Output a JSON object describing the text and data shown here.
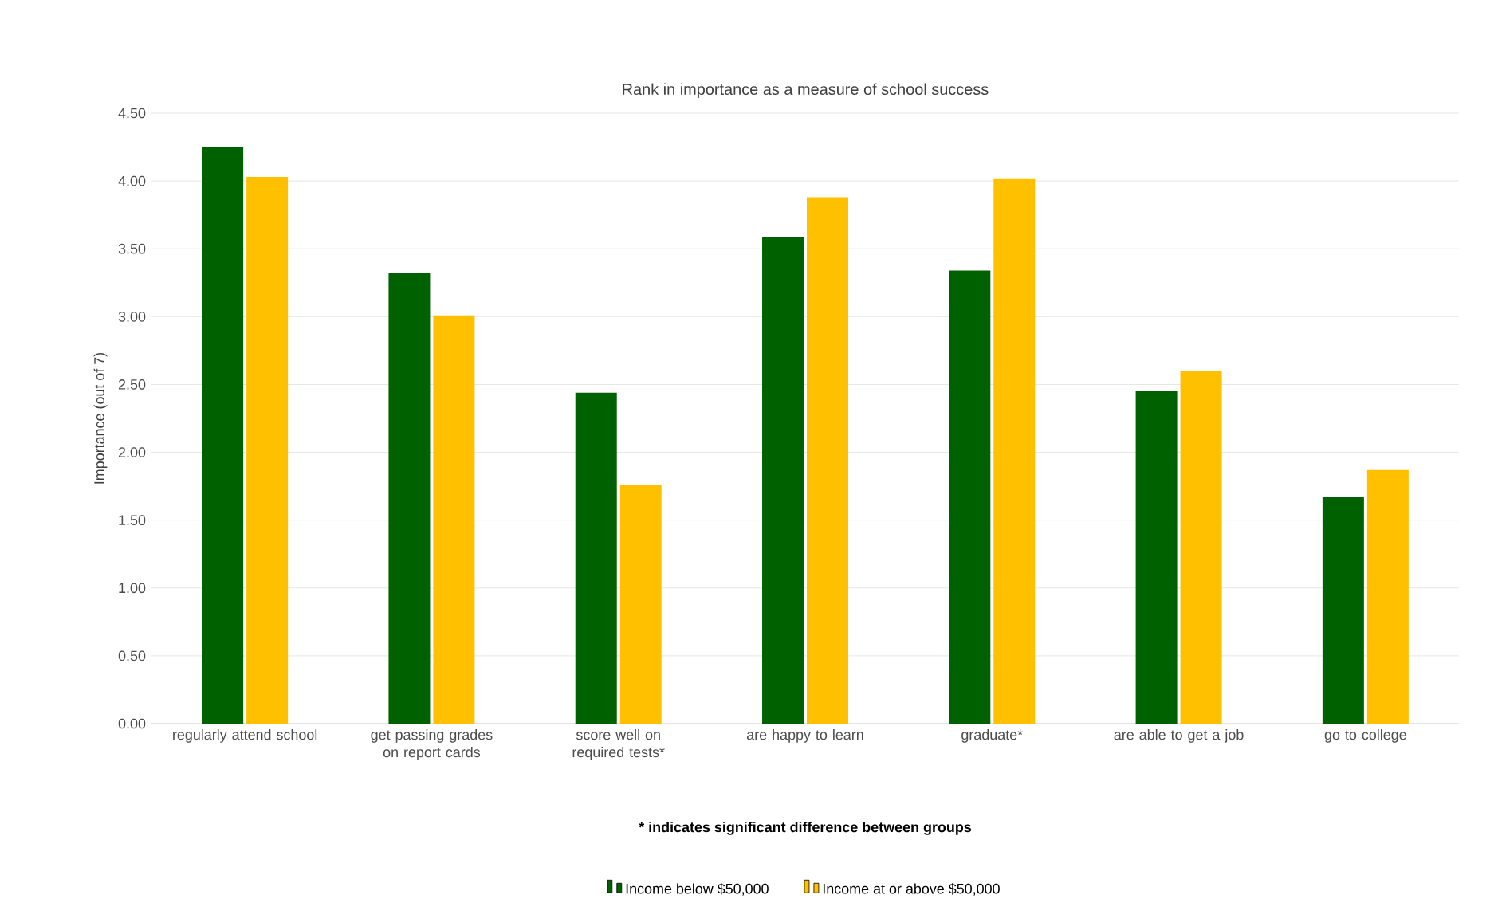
{
  "chart_data": {
    "type": "bar",
    "title": "Rank in importance as a measure of school success",
    "ylabel": "Importance (out of 7)",
    "categories": [
      "regularly attend school",
      "get passing grades on report cards",
      "score well on required tests*",
      "are happy to learn",
      "graduate*",
      "are able to get a job",
      "go to college"
    ],
    "series": [
      {
        "name": "Income below $50,000",
        "color": "#006100",
        "values": [
          4.25,
          3.32,
          2.44,
          3.59,
          3.34,
          2.45,
          1.67
        ]
      },
      {
        "name": "Income at or above $50,000",
        "color": "#ffc000",
        "values": [
          4.03,
          3.01,
          1.76,
          3.88,
          4.02,
          2.6,
          1.87
        ]
      }
    ],
    "ylim": [
      0,
      4.5
    ],
    "yticks": [
      {
        "value": 0,
        "label": "0.00"
      },
      {
        "value": 0.5,
        "label": "0.50"
      },
      {
        "value": 1,
        "label": "1.00"
      },
      {
        "value": 1.5,
        "label": "1.50"
      },
      {
        "value": 2,
        "label": "2.00"
      },
      {
        "value": 2.5,
        "label": "2.50"
      },
      {
        "value": 3,
        "label": "3.00"
      },
      {
        "value": 3.5,
        "label": "3.50"
      },
      {
        "value": 4,
        "label": "4.00"
      },
      {
        "value": 4.5,
        "label": "4.50"
      }
    ],
    "grid": "y",
    "legend": "bottom",
    "annotations": [
      "* indicates significant difference between groups"
    ]
  }
}
